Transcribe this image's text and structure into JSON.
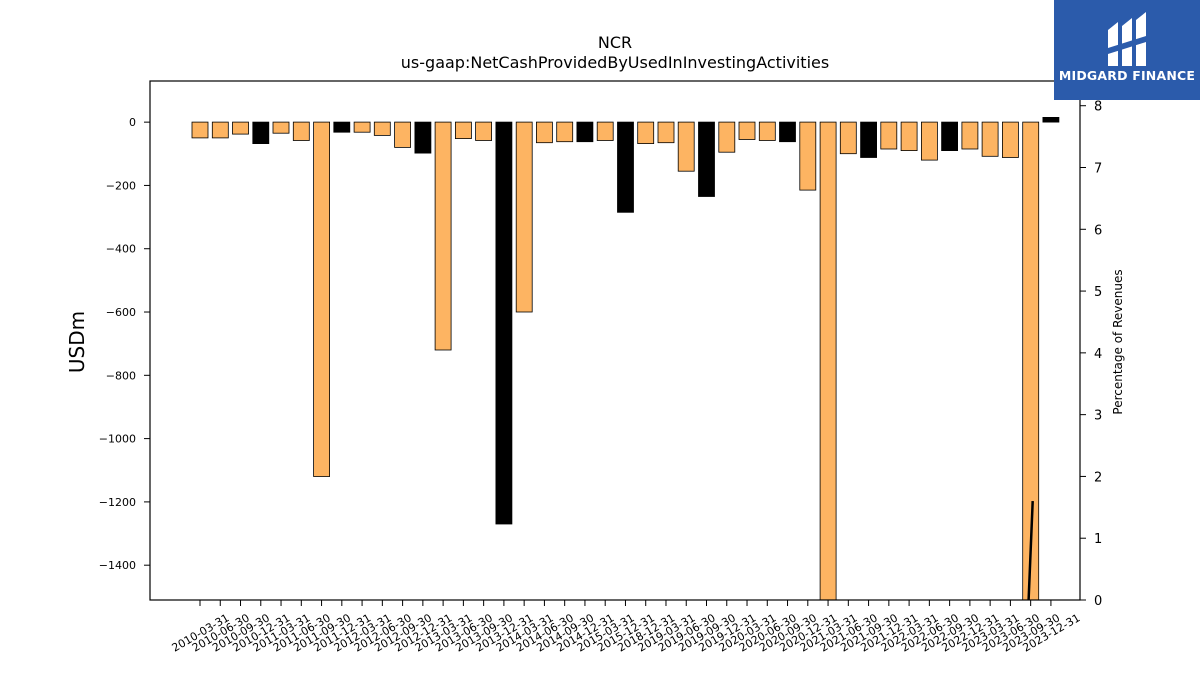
{
  "chart_data": {
    "type": "bar",
    "title": "NCR",
    "subtitle": "us-gaap:NetCashProvidedByUsedInInvestingActivities",
    "ylabel": "USDm",
    "y2label": "Percentage of Revenues",
    "ylim": [
      -1510,
      130
    ],
    "y2lim": [
      0,
      8.4
    ],
    "yticks": [
      0,
      -200,
      -400,
      -600,
      -800,
      -1000,
      -1200,
      -1400
    ],
    "y2ticks": [
      0,
      1,
      2,
      3,
      4,
      5,
      6,
      7,
      8
    ],
    "colors": {
      "bar": "#fdb462",
      "q4_bar": "#000000",
      "line": "#000000"
    },
    "categories": [
      "2010-03-31",
      "2010-06-30",
      "2010-09-30",
      "2010-12-31",
      "2011-03-31",
      "2011-06-30",
      "2011-09-30",
      "2011-12-31",
      "2012-03-31",
      "2012-06-30",
      "2012-09-30",
      "2012-12-31",
      "2013-03-31",
      "2013-06-30",
      "2013-09-30",
      "2013-12-31",
      "2014-03-31",
      "2014-06-30",
      "2014-09-30",
      "2014-12-31",
      "2015-03-31",
      "2015-12-31",
      "2018-12-31",
      "2019-03-31",
      "2019-06-30",
      "2019-09-30",
      "2019-12-31",
      "2020-03-31",
      "2020-06-30",
      "2020-09-30",
      "2020-12-31",
      "2021-03-31",
      "2021-06-30",
      "2021-09-30",
      "2021-12-31",
      "2022-03-31",
      "2022-06-30",
      "2022-09-30",
      "2022-12-31",
      "2023-03-31",
      "2023-06-30",
      "2023-09-30",
      "2023-12-31"
    ],
    "values": [
      -50,
      -50,
      -38,
      -68,
      -35,
      -58,
      -1120,
      -32,
      -32,
      -42,
      -80,
      -98,
      -720,
      -52,
      -58,
      -1270,
      -600,
      -65,
      -62,
      -62,
      -58,
      -285,
      -68,
      -65,
      -155,
      -235,
      -95,
      -55,
      -58,
      -62,
      -215,
      -1510,
      -100,
      -112,
      -85,
      -90,
      -120,
      -90,
      -85,
      -108,
      -112,
      -1510,
      15
    ],
    "q4_flags": [
      0,
      0,
      0,
      1,
      0,
      0,
      0,
      1,
      0,
      0,
      0,
      1,
      0,
      0,
      0,
      1,
      0,
      0,
      0,
      1,
      0,
      1,
      0,
      0,
      0,
      1,
      0,
      0,
      0,
      1,
      0,
      0,
      0,
      1,
      0,
      0,
      0,
      1,
      0,
      0,
      0,
      0,
      1
    ],
    "secondary_line": {
      "x_index": [
        40.9,
        41.1
      ],
      "values": [
        0,
        1.6
      ]
    }
  },
  "logo": {
    "text": "MIDGARD FINANCE"
  }
}
